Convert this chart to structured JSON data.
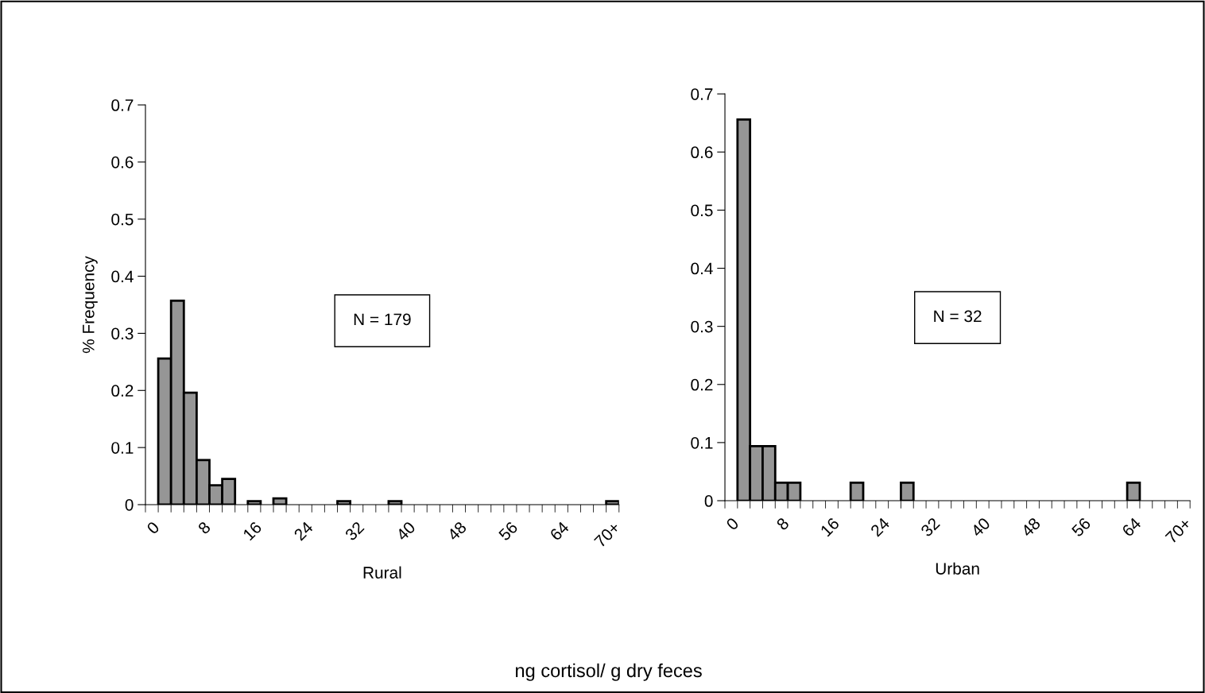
{
  "chart_data": [
    {
      "type": "bar",
      "categories": [
        "0",
        null,
        null,
        null,
        "8",
        null,
        null,
        null,
        "16",
        null,
        null,
        null,
        "24",
        null,
        null,
        null,
        "32",
        null,
        null,
        null,
        "40",
        null,
        null,
        null,
        "48",
        null,
        null,
        null,
        "56",
        null,
        null,
        null,
        "64",
        null,
        null,
        null,
        "70+"
      ],
      "values": [
        0,
        0.256,
        0.357,
        0.196,
        0.078,
        0.034,
        0.045,
        0,
        0.006,
        0,
        0.011,
        0,
        0,
        0,
        0,
        0.006,
        0,
        0,
        0,
        0.006,
        0,
        0,
        0,
        0,
        0,
        0,
        0,
        0,
        0,
        0,
        0,
        0,
        0,
        0,
        0,
        0,
        0.006
      ],
      "color": "#969696",
      "ylim": [
        0,
        0.7
      ],
      "yticks": [
        0,
        0.1,
        0.2,
        0.3,
        0.4,
        0.5,
        0.6,
        0.7
      ],
      "ylabel": "% Frequency",
      "xlabel": "Rural",
      "grid": false,
      "annotations": [
        "N = 179",
        "ng cortisol/ g dry feces"
      ]
    },
    {
      "type": "bar",
      "categories": [
        "0",
        null,
        null,
        null,
        "8",
        null,
        null,
        null,
        "16",
        null,
        null,
        null,
        "24",
        null,
        null,
        null,
        "32",
        null,
        null,
        null,
        "40",
        null,
        null,
        null,
        "48",
        null,
        null,
        null,
        "56",
        null,
        null,
        null,
        "64",
        null,
        null,
        null,
        "70+"
      ],
      "values": [
        0,
        0.656,
        0.094,
        0.094,
        0.031,
        0.031,
        0,
        0,
        0,
        0,
        0.031,
        0,
        0,
        0,
        0.031,
        0,
        0,
        0,
        0,
        0,
        0,
        0,
        0,
        0,
        0,
        0,
        0,
        0,
        0,
        0,
        0,
        0,
        0.031,
        0,
        0,
        0,
        0
      ],
      "color": "#969696",
      "ylim": [
        0,
        0.7
      ],
      "yticks": [
        0,
        0.1,
        0.2,
        0.3,
        0.4,
        0.5,
        0.6,
        0.7
      ],
      "xlabel": "Urban",
      "grid": false,
      "annotations": [
        "N = 32"
      ]
    }
  ]
}
